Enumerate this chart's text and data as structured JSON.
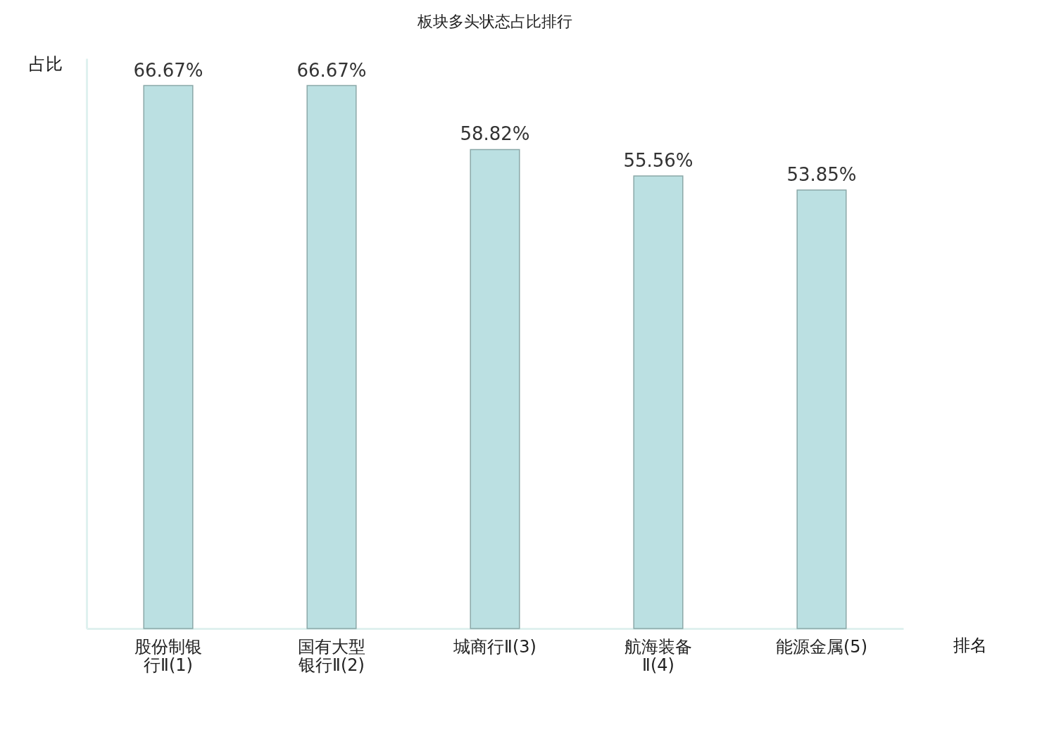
{
  "chart_data": {
    "type": "bar",
    "title": "板块多头状态占比排行",
    "xlabel": "排名",
    "ylabel": "占比",
    "categories": [
      "股份制银行Ⅱ(1)",
      "国有大型银行Ⅱ(2)",
      "城商行Ⅱ(3)",
      "航海装备Ⅱ(4)",
      "能源金属(5)"
    ],
    "values": [
      66.67,
      66.67,
      58.82,
      55.56,
      53.85
    ],
    "value_labels": [
      "66.67%",
      "66.67%",
      "58.82%",
      "55.56%",
      "53.85%"
    ],
    "color": "#bbe0e2",
    "tick_labels": "x"
  }
}
